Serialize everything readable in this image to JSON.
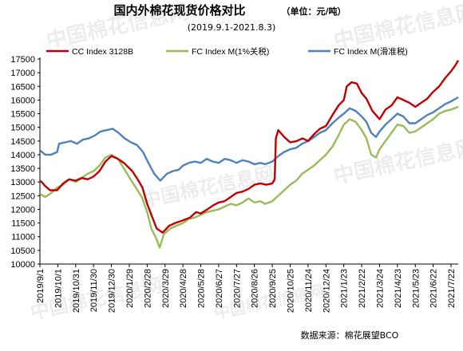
{
  "header": {
    "title": "国内外棉花现货价格对比",
    "unit": "（单位：元/吨）",
    "subtitle": "(2019.9.1-2021.8.3)"
  },
  "source": "数据来源：棉花展望BCO",
  "watermark": "中国棉花信息网",
  "chart_data": {
    "type": "line",
    "title": "国内外棉花现货价格对比",
    "subtitle": "(2019.9.1-2021.8.3)",
    "ylabel": "",
    "xlabel": "",
    "ylim": [
      10000,
      17500
    ],
    "yticks": [
      10000,
      10500,
      11000,
      11500,
      12000,
      12500,
      13000,
      13500,
      14000,
      14500,
      15000,
      15500,
      16000,
      16500,
      17000,
      17500
    ],
    "xlim": [
      "2019-09-01",
      "2021-08-03"
    ],
    "xticks": [
      "2019/9/1",
      "2019/10/1",
      "2019/10/31",
      "2019/11/30",
      "2019/12/30",
      "2020/1/29",
      "2020/2/28",
      "2020/3/29",
      "2020/4/28",
      "2020/5/28",
      "2020/6/27",
      "2020/7/27",
      "2020/8/26",
      "2020/9/25",
      "2020/10/25",
      "2020/11/24",
      "2020/12/24",
      "2021/1/23",
      "2021/2/22",
      "2021/3/24",
      "2021/4/23",
      "2021/5/23",
      "2021/6/22",
      "2021/7/22"
    ],
    "grid": false,
    "legend": "top",
    "series": [
      {
        "name": "CC Index 3128B",
        "color": "#c00000",
        "points": [
          [
            "2019-09-02",
            13050
          ],
          [
            "2019-09-10",
            12850
          ],
          [
            "2019-09-18",
            12700
          ],
          [
            "2019-09-30",
            12700
          ],
          [
            "2019-10-10",
            12950
          ],
          [
            "2019-10-20",
            13100
          ],
          [
            "2019-10-31",
            13050
          ],
          [
            "2019-11-10",
            13150
          ],
          [
            "2019-11-20",
            13100
          ],
          [
            "2019-11-30",
            13200
          ],
          [
            "2019-12-10",
            13400
          ],
          [
            "2019-12-20",
            13750
          ],
          [
            "2019-12-30",
            13950
          ],
          [
            "2020-01-10",
            13850
          ],
          [
            "2020-01-20",
            13700
          ],
          [
            "2020-02-03",
            13400
          ],
          [
            "2020-02-12",
            13100
          ],
          [
            "2020-02-20",
            12800
          ],
          [
            "2020-02-28",
            12200
          ],
          [
            "2020-03-06",
            11800
          ],
          [
            "2020-03-15",
            11300
          ],
          [
            "2020-03-25",
            11150
          ],
          [
            "2020-04-05",
            11400
          ],
          [
            "2020-04-15",
            11500
          ],
          [
            "2020-04-28",
            11600
          ],
          [
            "2020-05-10",
            11700
          ],
          [
            "2020-05-20",
            11900
          ],
          [
            "2020-05-28",
            11850
          ],
          [
            "2020-06-08",
            12000
          ],
          [
            "2020-06-18",
            12150
          ],
          [
            "2020-06-27",
            12250
          ],
          [
            "2020-07-07",
            12300
          ],
          [
            "2020-07-17",
            12450
          ],
          [
            "2020-07-27",
            12600
          ],
          [
            "2020-08-06",
            12650
          ],
          [
            "2020-08-16",
            12750
          ],
          [
            "2020-08-26",
            12900
          ],
          [
            "2020-09-05",
            12950
          ],
          [
            "2020-09-15",
            12900
          ],
          [
            "2020-09-25",
            12950
          ],
          [
            "2020-09-29",
            13100
          ],
          [
            "2020-10-01",
            14600
          ],
          [
            "2020-10-05",
            14900
          ],
          [
            "2020-10-15",
            14650
          ],
          [
            "2020-10-25",
            14450
          ],
          [
            "2020-11-05",
            14500
          ],
          [
            "2020-11-15",
            14600
          ],
          [
            "2020-11-24",
            14500
          ],
          [
            "2020-12-04",
            14750
          ],
          [
            "2020-12-14",
            14950
          ],
          [
            "2020-12-24",
            15050
          ],
          [
            "2021-01-04",
            15450
          ],
          [
            "2021-01-14",
            15800
          ],
          [
            "2021-01-23",
            16000
          ],
          [
            "2021-01-28",
            16500
          ],
          [
            "2021-02-05",
            16650
          ],
          [
            "2021-02-14",
            16600
          ],
          [
            "2021-02-22",
            16250
          ],
          [
            "2021-03-02",
            16050
          ],
          [
            "2021-03-12",
            15600
          ],
          [
            "2021-03-24",
            15300
          ],
          [
            "2021-04-03",
            15650
          ],
          [
            "2021-04-13",
            15800
          ],
          [
            "2021-04-23",
            16100
          ],
          [
            "2021-05-03",
            16000
          ],
          [
            "2021-05-13",
            15900
          ],
          [
            "2021-05-23",
            15750
          ],
          [
            "2021-06-02",
            15900
          ],
          [
            "2021-06-12",
            16050
          ],
          [
            "2021-06-22",
            16300
          ],
          [
            "2021-07-02",
            16500
          ],
          [
            "2021-07-12",
            16800
          ],
          [
            "2021-07-22",
            17050
          ],
          [
            "2021-07-30",
            17300
          ],
          [
            "2021-08-03",
            17450
          ]
        ]
      },
      {
        "name": "FC Index M(1%关税)",
        "color": "#9bbb59",
        "points": [
          [
            "2019-09-02",
            12550
          ],
          [
            "2019-09-10",
            12450
          ],
          [
            "2019-09-20",
            12600
          ],
          [
            "2019-09-30",
            12800
          ],
          [
            "2019-10-10",
            12900
          ],
          [
            "2019-10-20",
            13100
          ],
          [
            "2019-10-31",
            13000
          ],
          [
            "2019-11-10",
            13150
          ],
          [
            "2019-11-20",
            13300
          ],
          [
            "2019-11-30",
            13400
          ],
          [
            "2019-12-10",
            13600
          ],
          [
            "2019-12-20",
            13900
          ],
          [
            "2019-12-30",
            14000
          ],
          [
            "2020-01-10",
            13850
          ],
          [
            "2020-01-20",
            13500
          ],
          [
            "2020-02-03",
            13000
          ],
          [
            "2020-02-12",
            12700
          ],
          [
            "2020-02-20",
            12400
          ],
          [
            "2020-02-28",
            11900
          ],
          [
            "2020-03-06",
            11300
          ],
          [
            "2020-03-15",
            10900
          ],
          [
            "2020-03-20",
            10600
          ],
          [
            "2020-03-27",
            11100
          ],
          [
            "2020-04-07",
            11300
          ],
          [
            "2020-04-17",
            11400
          ],
          [
            "2020-04-28",
            11500
          ],
          [
            "2020-05-08",
            11650
          ],
          [
            "2020-05-18",
            11700
          ],
          [
            "2020-05-28",
            11800
          ],
          [
            "2020-06-07",
            11900
          ],
          [
            "2020-06-17",
            11950
          ],
          [
            "2020-06-27",
            12000
          ],
          [
            "2020-07-07",
            12100
          ],
          [
            "2020-07-17",
            12200
          ],
          [
            "2020-07-27",
            12150
          ],
          [
            "2020-08-06",
            12250
          ],
          [
            "2020-08-16",
            12400
          ],
          [
            "2020-08-26",
            12250
          ],
          [
            "2020-09-05",
            12300
          ],
          [
            "2020-09-13",
            12200
          ],
          [
            "2020-09-25",
            12300
          ],
          [
            "2020-10-05",
            12500
          ],
          [
            "2020-10-15",
            12700
          ],
          [
            "2020-10-25",
            12900
          ],
          [
            "2020-11-04",
            13050
          ],
          [
            "2020-11-14",
            13300
          ],
          [
            "2020-11-24",
            13450
          ],
          [
            "2020-12-04",
            13600
          ],
          [
            "2020-12-14",
            13800
          ],
          [
            "2020-12-24",
            14000
          ],
          [
            "2021-01-04",
            14300
          ],
          [
            "2021-01-14",
            14700
          ],
          [
            "2021-01-23",
            15100
          ],
          [
            "2021-02-02",
            15300
          ],
          [
            "2021-02-12",
            15200
          ],
          [
            "2021-02-22",
            14900
          ],
          [
            "2021-03-02",
            14600
          ],
          [
            "2021-03-10",
            14000
          ],
          [
            "2021-03-18",
            13900
          ],
          [
            "2021-03-24",
            14200
          ],
          [
            "2021-04-03",
            14500
          ],
          [
            "2021-04-13",
            14800
          ],
          [
            "2021-04-23",
            15100
          ],
          [
            "2021-05-03",
            15050
          ],
          [
            "2021-05-13",
            14800
          ],
          [
            "2021-05-23",
            14850
          ],
          [
            "2021-06-02",
            15000
          ],
          [
            "2021-06-12",
            15150
          ],
          [
            "2021-06-22",
            15300
          ],
          [
            "2021-07-02",
            15500
          ],
          [
            "2021-07-12",
            15600
          ],
          [
            "2021-07-22",
            15650
          ],
          [
            "2021-08-03",
            15750
          ]
        ]
      },
      {
        "name": "FC Index M(滑准税)",
        "color": "#4f81bd",
        "points": [
          [
            "2019-09-02",
            14150
          ],
          [
            "2019-09-10",
            14000
          ],
          [
            "2019-09-20",
            14000
          ],
          [
            "2019-09-30",
            14100
          ],
          [
            "2019-10-03",
            14400
          ],
          [
            "2019-10-13",
            14450
          ],
          [
            "2019-10-23",
            14500
          ],
          [
            "2019-11-02",
            14400
          ],
          [
            "2019-11-12",
            14550
          ],
          [
            "2019-11-22",
            14600
          ],
          [
            "2019-12-02",
            14700
          ],
          [
            "2019-12-12",
            14850
          ],
          [
            "2019-12-22",
            14900
          ],
          [
            "2020-01-01",
            14950
          ],
          [
            "2020-01-11",
            14800
          ],
          [
            "2020-01-21",
            14600
          ],
          [
            "2020-02-01",
            14450
          ],
          [
            "2020-02-11",
            14350
          ],
          [
            "2020-02-21",
            14100
          ],
          [
            "2020-03-01",
            13700
          ],
          [
            "2020-03-11",
            13300
          ],
          [
            "2020-03-21",
            13050
          ],
          [
            "2020-04-01",
            13300
          ],
          [
            "2020-04-11",
            13400
          ],
          [
            "2020-04-21",
            13450
          ],
          [
            "2020-04-28",
            13600
          ],
          [
            "2020-05-08",
            13700
          ],
          [
            "2020-05-18",
            13750
          ],
          [
            "2020-05-28",
            13700
          ],
          [
            "2020-06-07",
            13850
          ],
          [
            "2020-06-17",
            13750
          ],
          [
            "2020-06-27",
            13700
          ],
          [
            "2020-07-07",
            13850
          ],
          [
            "2020-07-17",
            13800
          ],
          [
            "2020-07-27",
            13700
          ],
          [
            "2020-08-06",
            13800
          ],
          [
            "2020-08-16",
            13750
          ],
          [
            "2020-08-26",
            13650
          ],
          [
            "2020-09-05",
            13700
          ],
          [
            "2020-09-13",
            13650
          ],
          [
            "2020-09-25",
            13750
          ],
          [
            "2020-10-05",
            13950
          ],
          [
            "2020-10-15",
            14100
          ],
          [
            "2020-10-25",
            14200
          ],
          [
            "2020-11-04",
            14250
          ],
          [
            "2020-11-14",
            14400
          ],
          [
            "2020-11-24",
            14500
          ],
          [
            "2020-12-04",
            14650
          ],
          [
            "2020-12-14",
            14800
          ],
          [
            "2020-12-24",
            14900
          ],
          [
            "2021-01-04",
            15150
          ],
          [
            "2021-01-14",
            15350
          ],
          [
            "2021-01-23",
            15500
          ],
          [
            "2021-02-02",
            15700
          ],
          [
            "2021-02-12",
            15600
          ],
          [
            "2021-02-22",
            15400
          ],
          [
            "2021-03-02",
            15200
          ],
          [
            "2021-03-10",
            14800
          ],
          [
            "2021-03-18",
            14650
          ],
          [
            "2021-03-24",
            14850
          ],
          [
            "2021-04-03",
            15100
          ],
          [
            "2021-04-13",
            15300
          ],
          [
            "2021-04-23",
            15500
          ],
          [
            "2021-05-03",
            15400
          ],
          [
            "2021-05-13",
            15150
          ],
          [
            "2021-05-23",
            15150
          ],
          [
            "2021-06-02",
            15300
          ],
          [
            "2021-06-12",
            15450
          ],
          [
            "2021-06-22",
            15550
          ],
          [
            "2021-07-02",
            15700
          ],
          [
            "2021-07-12",
            15850
          ],
          [
            "2021-07-22",
            15950
          ],
          [
            "2021-08-03",
            16100
          ]
        ]
      }
    ]
  }
}
